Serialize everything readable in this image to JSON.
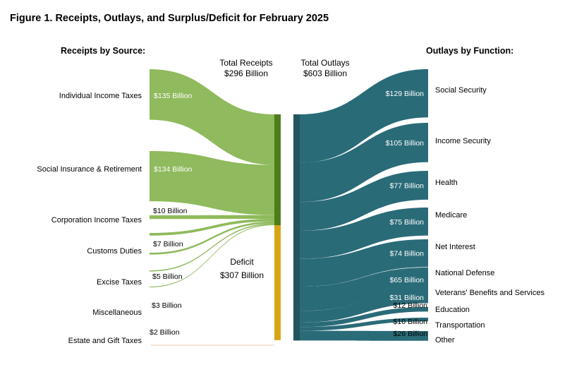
{
  "chart_data": {
    "type": "sankey",
    "title": "Figure 1. Receipts, Outlays, and Surplus/Deficit for February 2025",
    "receipts_heading": "Receipts by Source:",
    "outlays_heading": "Outlays by Function:",
    "total_receipts": {
      "label": "Total Receipts",
      "value_text": "$296 Billion",
      "value": 296
    },
    "total_outlays": {
      "label": "Total Outlays",
      "value_text": "$603 Billion",
      "value": 603
    },
    "deficit": {
      "label": "Deficit",
      "value_text": "$307 Billion",
      "value": 307
    },
    "receipts": [
      {
        "name": "Individual Income Taxes",
        "value": 135,
        "value_text": "$135 Billion"
      },
      {
        "name": "Social Insurance & Retirement",
        "value": 134,
        "value_text": "$134 Billion"
      },
      {
        "name": "Corporation Income Taxes",
        "value": 10,
        "value_text": "$10 Billion"
      },
      {
        "name": "Customs Duties",
        "value": 7,
        "value_text": "$7 Billion"
      },
      {
        "name": "Excise Taxes",
        "value": 5,
        "value_text": "$5 Billion"
      },
      {
        "name": "Miscellaneous",
        "value": 3,
        "value_text": "$3 Billion"
      },
      {
        "name": "Estate and Gift Taxes",
        "value": 2,
        "value_text": "$2 Billion"
      }
    ],
    "outlays": [
      {
        "name": "Social Security",
        "value": 129,
        "value_text": "$129 Billion"
      },
      {
        "name": "Income Security",
        "value": 105,
        "value_text": "$105 Billion"
      },
      {
        "name": "Health",
        "value": 77,
        "value_text": "$77 Billion"
      },
      {
        "name": "Medicare",
        "value": 75,
        "value_text": "$75 Billion"
      },
      {
        "name": "Net Interest",
        "value": 74,
        "value_text": "$74 Billion"
      },
      {
        "name": "National Defense",
        "value": 65,
        "value_text": "$65 Billion"
      },
      {
        "name": "Veterans' Benefits and Services",
        "value": 31,
        "value_text": "$31 Billion"
      },
      {
        "name": "Education",
        "value": 12,
        "value_text": "$12 Billion"
      },
      {
        "name": "Transportation",
        "value": 10,
        "value_text": "$10 Billion"
      },
      {
        "name": "Other",
        "value": 26,
        "value_text": "$26 Billion"
      }
    ],
    "colors": {
      "receipt_flow": "#8fba5d",
      "receipt_bar": "#4e7d1a",
      "deficit_bar": "#d9a416",
      "outlay_flow": "#2a6b78",
      "outlay_bar": "#22555f",
      "deficit_line": "#e8c9a8"
    }
  }
}
